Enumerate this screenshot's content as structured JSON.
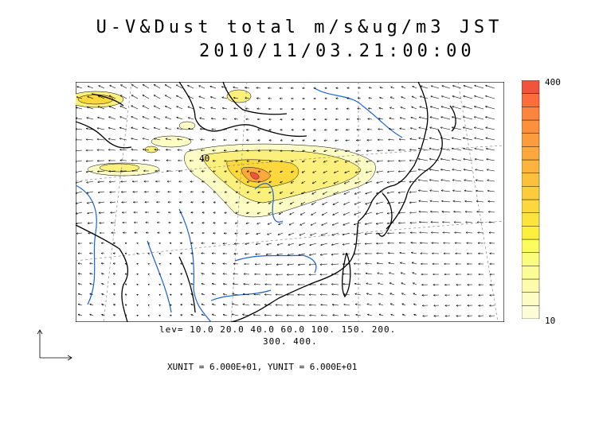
{
  "title": {
    "line1": "U-V&Dust total m/s&ug/m3 JST",
    "line2": "2010/11/03.21:00:00"
  },
  "contour_label": "40",
  "levels_text": {
    "line1": "lev= 10.0 20.0 40.0 60.0 100. 150. 200.",
    "line2": "300. 400."
  },
  "unit_text": "XUNIT = 6.000E+01, YUNIT = 6.000E+01",
  "colorbar": {
    "top_label": "400",
    "bottom_label": "10",
    "colors": [
      "#fcfcd8",
      "#fcfcc4",
      "#fcfcac",
      "#fcfc94",
      "#fcfc7c",
      "#fcfc5c",
      "#fcf03c",
      "#fce43c",
      "#fcd83c",
      "#fccc3c",
      "#fcc03c",
      "#fcb43c",
      "#fca83c",
      "#fc9c3c",
      "#fc903c",
      "#fc843c",
      "#fc6c3c",
      "#f0543c"
    ]
  },
  "colors": {
    "coast": "#000000",
    "river": "#1a64d8",
    "grid": "#808080",
    "dust_low": "#fcfcb4",
    "dust_mid": "#fce066",
    "dust_high": "#fc9c3c"
  }
}
